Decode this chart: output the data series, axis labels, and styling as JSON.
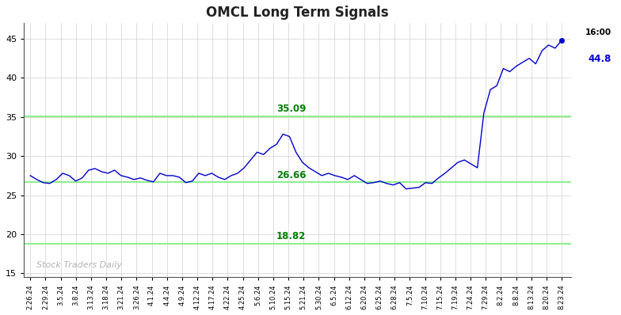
{
  "title": "OMCL Long Term Signals",
  "line_color": "#0000CD",
  "hline_color": "#90EE90",
  "hline_values": [
    35.09,
    26.66,
    18.82
  ],
  "hline_labels": [
    "35.09",
    "26.66",
    "18.82"
  ],
  "watermark": "Stock Traders Daily",
  "watermark_color": "#aaaaaa",
  "last_label_time": "16:00",
  "last_label_value": "44.8",
  "last_label_color": "#0000CD",
  "ylim": [
    14.5,
    47
  ],
  "yticks": [
    15,
    20,
    25,
    30,
    35,
    40,
    45
  ],
  "bg_color": "#ffffff",
  "plot_bg_color": "#ffffff",
  "grid_color": "#d0d0d0",
  "x_tick_labels": [
    "2.26.24",
    "2.29.24",
    "3.5.24",
    "3.8.24",
    "3.13.24",
    "3.18.24",
    "3.21.24",
    "3.26.24",
    "4.1.24",
    "4.4.24",
    "4.9.24",
    "4.12.24",
    "4.17.24",
    "4.22.24",
    "4.25.24",
    "5.6.24",
    "5.10.24",
    "5.15.24",
    "5.21.24",
    "5.30.24",
    "6.5.24",
    "6.12.24",
    "6.20.24",
    "6.25.24",
    "6.28.24",
    "7.5.24",
    "7.10.24",
    "7.15.24",
    "7.19.24",
    "7.24.24",
    "7.29.24",
    "8.2.24",
    "8.8.24",
    "8.13.24",
    "8.20.24",
    "8.23.24"
  ],
  "prices": [
    27.5,
    27.0,
    26.6,
    26.5,
    27.0,
    27.8,
    27.5,
    26.8,
    27.2,
    28.2,
    28.4,
    28.0,
    27.8,
    28.2,
    27.5,
    27.3,
    27.0,
    27.2,
    26.9,
    26.7,
    27.8,
    27.5,
    27.5,
    27.3,
    26.6,
    26.8,
    27.8,
    27.5,
    27.8,
    27.3,
    27.0,
    27.5,
    27.8,
    28.5,
    29.5,
    30.5,
    30.2,
    31.0,
    31.5,
    32.8,
    32.5,
    30.5,
    29.2,
    28.5,
    28.0,
    27.5,
    27.8,
    27.5,
    27.3,
    27.0,
    27.5,
    27.0,
    26.5,
    26.6,
    26.8,
    26.5,
    26.3,
    26.6,
    25.8,
    25.9,
    26.0,
    26.6,
    26.5,
    27.2,
    27.8,
    28.5,
    29.2,
    29.5,
    29.0,
    28.5,
    35.5,
    38.5,
    39.0,
    41.2,
    40.8,
    41.5,
    42.0,
    42.5,
    41.8,
    43.5,
    44.2,
    43.8,
    44.8
  ]
}
